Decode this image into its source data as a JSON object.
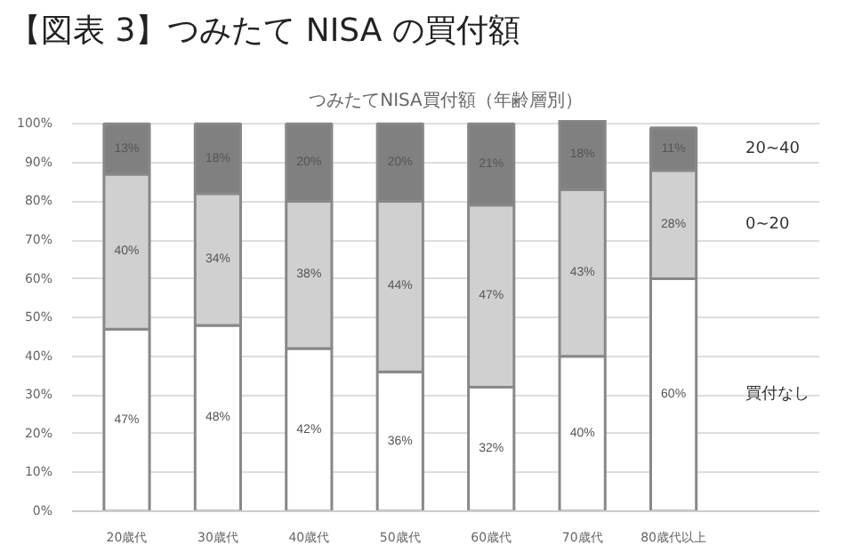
{
  "chart_data": {
    "type": "bar",
    "stacked": true,
    "title": "【図表 3】つみたて NISA の買付額",
    "subtitle": "つみたてNISA買付額（年齢層別）",
    "categories": [
      "20歳代",
      "30歳代",
      "40歳代",
      "50歳代",
      "60歳代",
      "70歳代",
      "80歳代以上"
    ],
    "series": [
      {
        "name": "買付なし",
        "color": "#ffffff",
        "values": [
          47,
          48,
          42,
          36,
          32,
          40,
          60
        ],
        "value_labels": [
          "47%",
          "48%",
          "42%",
          "36%",
          "32%",
          "40%",
          "60%"
        ]
      },
      {
        "name": "0~20",
        "color": "#d0d0d0",
        "values": [
          40,
          34,
          38,
          44,
          47,
          43,
          28
        ],
        "value_labels": [
          "40%",
          "34%",
          "38%",
          "44%",
          "47%",
          "43%",
          "28%"
        ]
      },
      {
        "name": "20~40",
        "color": "#808080",
        "values": [
          13,
          18,
          20,
          20,
          21,
          18,
          11
        ],
        "value_labels": [
          "13%",
          "18%",
          "20%",
          "20%",
          "21%",
          "18%",
          "11%"
        ]
      }
    ],
    "ylim": [
      0,
      101
    ],
    "yticks": [
      {
        "value": 0,
        "label": "0%"
      },
      {
        "value": 10,
        "label": "10%"
      },
      {
        "value": 20,
        "label": "20%"
      },
      {
        "value": 30,
        "label": "30%"
      },
      {
        "value": 40,
        "label": "40%"
      },
      {
        "value": 50,
        "label": "50%"
      },
      {
        "value": 60,
        "label": "60%"
      },
      {
        "value": 70,
        "label": "70%"
      },
      {
        "value": 80,
        "label": "80%"
      },
      {
        "value": 90,
        "label": "90%"
      },
      {
        "value": 100,
        "label": "100%"
      }
    ],
    "grid": "y",
    "legend": "right"
  }
}
